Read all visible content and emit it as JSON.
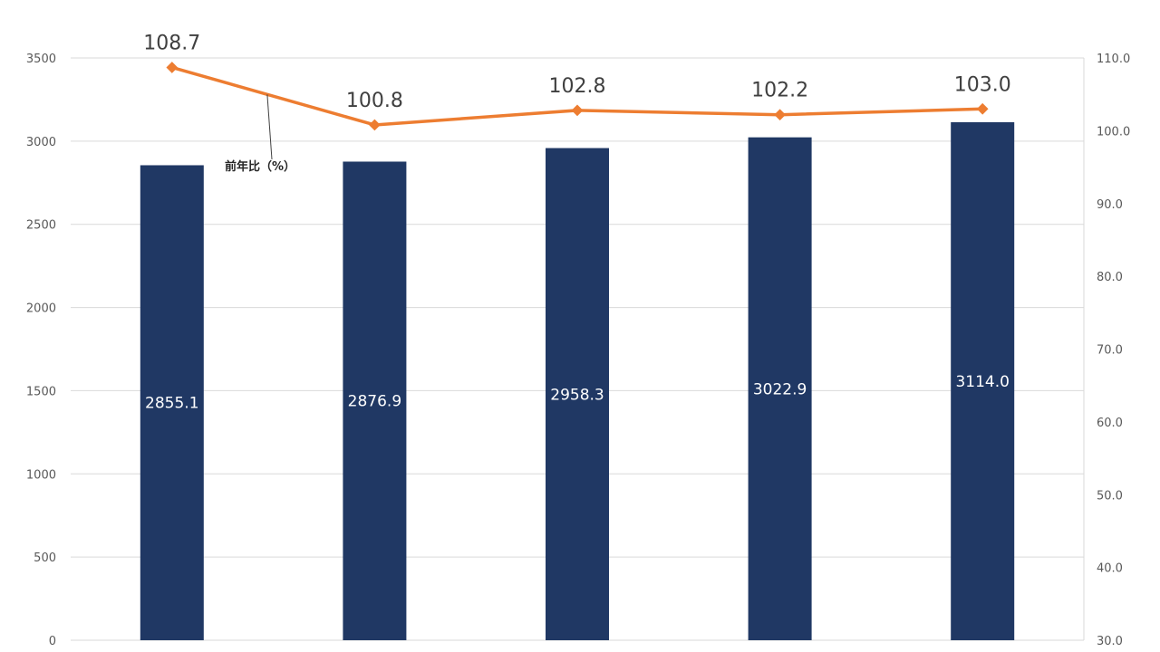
{
  "chart_data": {
    "type": "bar",
    "categories": [
      "",
      "",
      "",
      "",
      ""
    ],
    "series": [
      {
        "type": "bar",
        "axis": "left",
        "values": [
          2855.1,
          2876.9,
          2958.3,
          3022.9,
          3114.0
        ],
        "labels": [
          "2855.1",
          "2876.9",
          "2958.3",
          "3022.9",
          "3114.0"
        ],
        "color": "#203864"
      },
      {
        "name": "前年比（%）",
        "type": "line",
        "axis": "right",
        "values": [
          108.7,
          100.8,
          102.8,
          102.2,
          103.0
        ],
        "labels": [
          "108.7",
          "100.8",
          "102.8",
          "102.2",
          "103.0"
        ],
        "color": "#ED7D31"
      }
    ],
    "y_left": {
      "ylim": [
        0,
        3500
      ],
      "ticks": [
        "0",
        "500",
        "1000",
        "1500",
        "2000",
        "2500",
        "3000",
        "3500"
      ]
    },
    "y_right": {
      "ylim": [
        30,
        110
      ],
      "ticks": [
        "30.0",
        "40.0",
        "50.0",
        "60.0",
        "70.0",
        "80.0",
        "90.0",
        "100.0",
        "110.0"
      ]
    },
    "grid": true,
    "colors": {
      "grid": "#d9d9d9",
      "tick_text": "#595959",
      "bar_label": "#ffffff"
    }
  }
}
